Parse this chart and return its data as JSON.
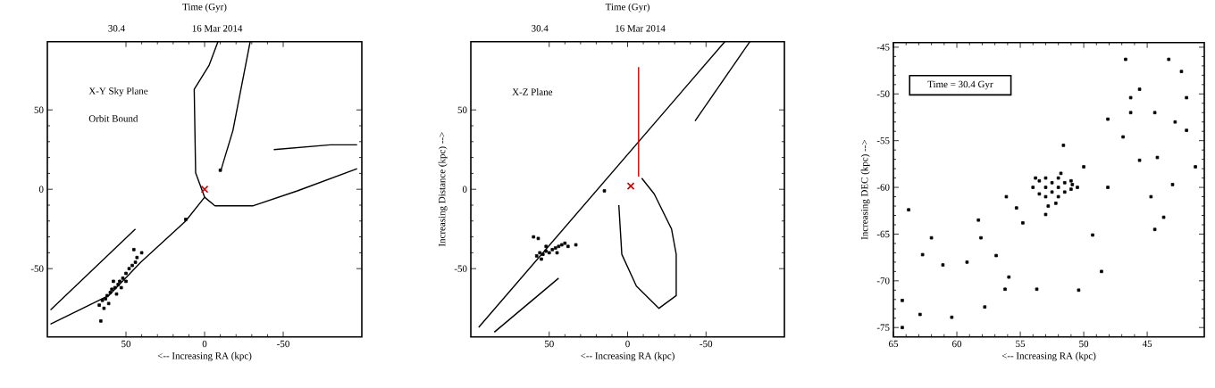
{
  "chart_data": [
    {
      "type": "scatter",
      "xlabel": "<-- Increasing RA (kpc)",
      "xlim": [
        100,
        -100
      ],
      "ylim": [
        -93,
        93
      ],
      "xticks": [
        50,
        0,
        -50
      ],
      "yticks": [
        -50,
        0,
        50
      ],
      "annotations": [
        "X-Y Sky Plane",
        "Orbit Bound",
        "Time (Gyr)",
        "30.4",
        "16 Mar 2014"
      ],
      "series": [
        {
          "type": "line",
          "color": "#000000",
          "x": [
            98,
            61,
            40.6,
            12,
            0,
            5.7,
            6.6,
            -2.8,
            -8.5
          ],
          "values": [
            -85,
            -67,
            -46,
            -20,
            -5,
            10.4,
            63,
            78,
            93
          ]
        },
        {
          "type": "line",
          "color": "#000000",
          "x": [
            0,
            -6.6,
            -31,
            -59,
            -97
          ],
          "values": [
            -5,
            -10.4,
            -10.4,
            -1,
            13
          ]
        },
        {
          "type": "line",
          "color": "#000000",
          "x": [
            -10.4,
            -18,
            -29
          ],
          "values": [
            12,
            37,
            93
          ]
        },
        {
          "type": "line",
          "color": "#000000",
          "x": [
            -44,
            -80,
            -97
          ],
          "values": [
            25,
            28,
            28
          ]
        },
        {
          "type": "line",
          "color": "#000000",
          "x": [
            98,
            44
          ],
          "values": [
            -76,
            -25
          ]
        },
        {
          "marker": "square",
          "color": "#000000",
          "x": [
            67,
            65,
            63,
            62,
            60,
            59,
            57,
            55,
            54,
            52,
            50,
            48,
            46,
            44,
            50,
            56,
            64,
            66,
            45,
            40,
            43,
            58,
            53,
            61,
            12,
            -10
          ],
          "values": [
            -73,
            -70,
            -69,
            -67,
            -65,
            -63,
            -62,
            -60,
            -58,
            -56,
            -53,
            -50,
            -48,
            -46,
            -58,
            -66,
            -75,
            -83,
            -38,
            -40,
            -43,
            -58,
            -62,
            -72,
            -19,
            12
          ]
        },
        {
          "marker": "cross",
          "color": "#cc0000",
          "x": [
            0
          ],
          "values": [
            0
          ]
        }
      ]
    },
    {
      "type": "scatter",
      "xlabel": "<-- Increasing RA (kpc)",
      "ylabel": "Increasing Distance (kpc) -->",
      "xlim": [
        100,
        -100
      ],
      "ylim": [
        -93,
        93
      ],
      "xticks": [
        50,
        0,
        -50
      ],
      "yticks": [
        -50,
        0,
        50
      ],
      "annotations": [
        "X-Z Plane",
        "Time (Gyr)",
        "30.4",
        "16 Mar 2014"
      ],
      "series": [
        {
          "type": "line",
          "color": "#000000",
          "x": [
            95,
            -62
          ],
          "values": [
            -87,
            93
          ]
        },
        {
          "type": "line",
          "color": "#000000",
          "x": [
            85,
            44
          ],
          "values": [
            -90,
            -56
          ]
        },
        {
          "type": "line",
          "color": "#000000",
          "x": [
            -43,
            -78
          ],
          "values": [
            43,
            93
          ]
        },
        {
          "type": "line",
          "color": "#000000",
          "x": [
            5.6,
            3.7,
            -5.6,
            -20,
            -31,
            -31,
            -28,
            -17,
            -9
          ],
          "values": [
            -10,
            -41,
            -61,
            -75,
            -67,
            -41,
            -25,
            -3,
            7
          ]
        },
        {
          "type": "line",
          "color": "#cc0000",
          "x": [
            -7,
            -7
          ],
          "values": [
            8,
            77
          ]
        },
        {
          "marker": "square",
          "color": "#000000",
          "x": [
            58,
            56,
            54,
            52,
            50,
            48,
            46,
            44,
            42,
            40,
            55,
            60,
            57,
            52,
            45,
            33,
            38,
            14.8
          ],
          "values": [
            -42,
            -40,
            -41,
            -39,
            -40,
            -38,
            -37,
            -36,
            -35,
            -34,
            -44,
            -30,
            -31,
            -36,
            -40,
            -35,
            -36,
            -1
          ]
        },
        {
          "marker": "cross",
          "color": "#cc0000",
          "x": [
            -2
          ],
          "values": [
            2
          ]
        }
      ]
    },
    {
      "type": "scatter",
      "xlabel": "<-- Increasing RA (kpc)",
      "ylabel": "Increasing DEC (kpc) -->",
      "xlim": [
        65,
        40.5
      ],
      "ylim": [
        -76,
        -44.5
      ],
      "xticks": [
        65,
        60,
        55,
        50,
        45
      ],
      "yticks": [
        -45,
        -50,
        -55,
        -60,
        -65,
        -70,
        -75
      ],
      "annotations": [
        "Time = 30.4 Gyr"
      ],
      "series": [
        {
          "marker": "square",
          "color": "#000000",
          "x": [
            63.8,
            64.3,
            62,
            62.7,
            61.1,
            59.2,
            58.3,
            58.1,
            56.9,
            55.9,
            54.8,
            56.1,
            55.3,
            57.8,
            53.7,
            50.4,
            53,
            51.6,
            49.3,
            48.6,
            48.1,
            46.9,
            46.3,
            48.1,
            45.6,
            44.4,
            42.8,
            41.9,
            43.3,
            42.3,
            46.7,
            44.7,
            44.4,
            43.7,
            43,
            44.2,
            41.2,
            50,
            50.9,
            62.9,
            60.4,
            56.2,
            46.3,
            41.9,
            45.6,
            64.3,
            54,
            53.5,
            53.5,
            53,
            53,
            53,
            52.5,
            52.5,
            52,
            52,
            52,
            51.5,
            51.5,
            51,
            51,
            50.5,
            52.8,
            52.2,
            53.8,
            51.8
          ],
          "values": [
            -62.4,
            -72.1,
            -65.4,
            -67.2,
            -68.3,
            -68,
            -63.5,
            -65.4,
            -67.3,
            -69.6,
            -63.8,
            -61,
            -62.2,
            -72.8,
            -70.9,
            -71,
            -62.9,
            -55.5,
            -65.1,
            -69,
            -52.7,
            -54.6,
            -52,
            -60,
            -49.5,
            -52,
            -53,
            -53.9,
            -46.3,
            -47.6,
            -46.3,
            -61,
            -64.5,
            -63.2,
            -59.7,
            -56.8,
            -57.8,
            -57.8,
            -59.7,
            -73.6,
            -73.9,
            -70.9,
            -50.4,
            -50.4,
            -57.1,
            -75,
            -60,
            -59.3,
            -60.7,
            -59,
            -60,
            -61,
            -59.5,
            -60.5,
            -59,
            -60,
            -61,
            -59.5,
            -60.5,
            -59.3,
            -60.2,
            -60,
            -62,
            -61.7,
            -59,
            -58.5
          ]
        }
      ]
    }
  ]
}
